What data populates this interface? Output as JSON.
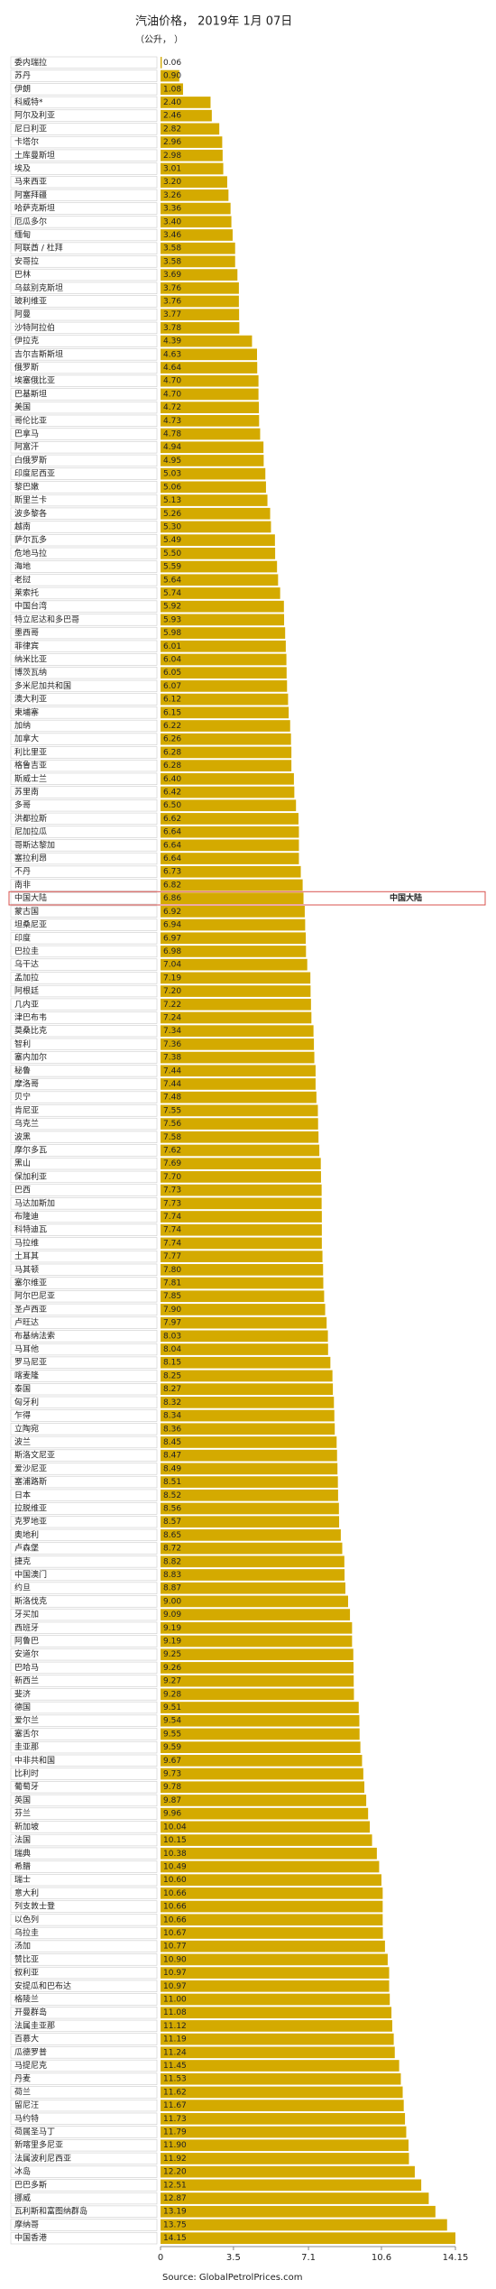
{
  "chart_data": {
    "type": "bar",
    "orientation": "horizontal",
    "title": "汽油价格， 2019年 1月 07日",
    "subtitle": "（公升， ）",
    "source": "Source: GlobalPetrolPrices.com",
    "highlight": "中国大陆",
    "color": "#d4aa00",
    "highlight_color": "#d9534f",
    "xlim": [
      0,
      14.15
    ],
    "xticks": [
      0,
      3.5,
      7.1,
      10.6,
      14.15
    ],
    "grid": false,
    "categories": [
      "委内瑞拉",
      "苏丹",
      "伊朗",
      "科威特*",
      "阿尔及利亚",
      "尼日利亚",
      "卡塔尔",
      "土库曼斯坦",
      "埃及",
      "马来西亚",
      "阿塞拜疆",
      "哈萨克斯坦",
      "厄瓜多尔",
      "缅甸",
      "阿联酋 / 杜拜",
      "安哥拉",
      "巴林",
      "乌兹别克斯坦",
      "玻利维亚",
      "阿曼",
      "沙特阿拉伯",
      "伊拉克",
      "吉尔吉斯斯坦",
      "俄罗斯",
      "埃塞俄比亚",
      "巴基斯坦",
      "美国",
      "哥伦比亚",
      "巴拿马",
      "阿富汗",
      "白俄罗斯",
      "印度尼西亚",
      "黎巴嫩",
      "斯里兰卡",
      "波多黎各",
      "越南",
      "萨尔瓦多",
      "危地马拉",
      "海地",
      "老挝",
      "莱索托",
      "中国台湾",
      "特立尼达和多巴哥",
      "墨西哥",
      "菲律宾",
      "纳米比亚",
      "博茨瓦纳",
      "多米尼加共和国",
      "澳大利亚",
      "柬埔寨",
      "加纳",
      "加拿大",
      "利比里亚",
      "格鲁吉亚",
      "斯威士兰",
      "苏里南",
      "多哥",
      "洪都拉斯",
      "尼加拉瓜",
      "哥斯达黎加",
      "塞拉利昂",
      "不丹",
      "南非",
      "中国大陆",
      "蒙古国",
      "坦桑尼亚",
      "印度",
      "巴拉圭",
      "乌干达",
      "孟加拉",
      "阿根廷",
      "几内亚",
      "津巴布韦",
      "莫桑比克",
      "智利",
      "塞内加尔",
      "秘鲁",
      "摩洛哥",
      "贝宁",
      "肯尼亚",
      "乌克兰",
      "波黑",
      "摩尔多瓦",
      "黑山",
      "保加利亚",
      "巴西",
      "马达加斯加",
      "布隆迪",
      "科特迪瓦",
      "马拉维",
      "土耳其",
      "马其顿",
      "塞尔维亚",
      "阿尔巴尼亚",
      "圣卢西亚",
      "卢旺达",
      "布基纳法索",
      "马耳他",
      "罗马尼亚",
      "喀麦隆",
      "泰国",
      "匈牙利",
      "乍得",
      "立陶宛",
      "波兰",
      "斯洛文尼亚",
      "爱沙尼亚",
      "塞浦路斯",
      "日本",
      "拉脱维亚",
      "克罗地亚",
      "奥地利",
      "卢森堡",
      "捷克",
      "中国澳门",
      "约旦",
      "斯洛伐克",
      "牙买加",
      "西班牙",
      "阿鲁巴",
      "安道尔",
      "巴哈马",
      "新西兰",
      "斐济",
      "德国",
      "爱尔兰",
      "塞舌尔",
      "圭亚那",
      "中非共和国",
      "比利时",
      "葡萄牙",
      "英国",
      "芬兰",
      "新加坡",
      "法国",
      "瑞典",
      "希腊",
      "瑞士",
      "意大利",
      "列支敦士登",
      "以色列",
      "乌拉圭",
      "汤加",
      "赞比亚",
      "叙利亚",
      "安提瓜和巴布达",
      "格陵兰",
      "开曼群岛",
      "法属圭亚那",
      "百慕大",
      "瓜德罗普",
      "马提尼克",
      "丹麦",
      "荷兰",
      "留尼汪",
      "马约特",
      "荷属圣马丁",
      "新喀里多尼亚",
      "法属波利尼西亚",
      "冰岛",
      "巴巴多斯",
      "挪威",
      "瓦利斯和富图纳群岛",
      "摩纳哥",
      "中国香港"
    ],
    "values": [
      0.06,
      0.9,
      1.08,
      2.4,
      2.46,
      2.82,
      2.96,
      2.98,
      3.01,
      3.2,
      3.26,
      3.36,
      3.4,
      3.46,
      3.58,
      3.58,
      3.69,
      3.76,
      3.76,
      3.77,
      3.78,
      4.39,
      4.63,
      4.64,
      4.7,
      4.7,
      4.72,
      4.73,
      4.78,
      4.94,
      4.95,
      5.03,
      5.06,
      5.13,
      5.26,
      5.3,
      5.49,
      5.5,
      5.59,
      5.64,
      5.74,
      5.92,
      5.93,
      5.98,
      6.01,
      6.04,
      6.05,
      6.07,
      6.12,
      6.15,
      6.22,
      6.26,
      6.28,
      6.28,
      6.4,
      6.42,
      6.5,
      6.62,
      6.64,
      6.64,
      6.64,
      6.73,
      6.82,
      6.86,
      6.92,
      6.94,
      6.97,
      6.98,
      7.04,
      7.19,
      7.2,
      7.22,
      7.24,
      7.34,
      7.36,
      7.38,
      7.44,
      7.44,
      7.48,
      7.55,
      7.56,
      7.58,
      7.62,
      7.69,
      7.7,
      7.73,
      7.73,
      7.74,
      7.74,
      7.74,
      7.77,
      7.8,
      7.81,
      7.85,
      7.9,
      7.97,
      8.03,
      8.04,
      8.15,
      8.25,
      8.27,
      8.32,
      8.34,
      8.36,
      8.45,
      8.47,
      8.49,
      8.51,
      8.52,
      8.56,
      8.57,
      8.65,
      8.72,
      8.82,
      8.83,
      8.87,
      9.0,
      9.09,
      9.19,
      9.19,
      9.25,
      9.26,
      9.27,
      9.28,
      9.51,
      9.54,
      9.55,
      9.59,
      9.67,
      9.73,
      9.78,
      9.87,
      9.96,
      10.04,
      10.15,
      10.38,
      10.49,
      10.6,
      10.66,
      10.66,
      10.66,
      10.67,
      10.77,
      10.9,
      10.97,
      10.97,
      11.0,
      11.08,
      11.12,
      11.19,
      11.24,
      11.45,
      11.53,
      11.62,
      11.67,
      11.73,
      11.79,
      11.9,
      11.92,
      12.2,
      12.51,
      12.87,
      13.19,
      13.75,
      14.15
    ],
    "value_labels": [
      "0.06",
      "0.90",
      "1.08",
      "2.40",
      "2.46",
      "2.82",
      "2.96",
      "2.98",
      "3.01",
      "3.20",
      "3.26",
      "3.36",
      "3.40",
      "3.46",
      "3.58",
      "3.58",
      "3.69",
      "3.76",
      "3.76",
      "3.77",
      "3.78",
      "4.39",
      "4.63",
      "4.64",
      "4.70",
      "4.70",
      "4.72",
      "4.73",
      "4.78",
      "4.94",
      "4.95",
      "5.03",
      "5.06",
      "5.13",
      "5.26",
      "5.30",
      "5.49",
      "5.50",
      "5.59",
      "5.64",
      "5.74",
      "5.92",
      "5.93",
      "5.98",
      "6.01",
      "6.04",
      "6.05",
      "6.07",
      "6.12",
      "6.15",
      "6.22",
      "6.26",
      "6.28",
      "6.28",
      "6.40",
      "6.42",
      "6.50",
      "6.62",
      "6.64",
      "6.64",
      "6.64",
      "6.73",
      "6.82",
      "6.86",
      "6.92",
      "6.94",
      "6.97",
      "6.98",
      "7.04",
      "7.19",
      "7.20",
      "7.22",
      "7.24",
      "7.34",
      "7.36",
      "7.38",
      "7.44",
      "7.44",
      "7.48",
      "7.55",
      "7.56",
      "7.58",
      "7.62",
      "7.69",
      "7.70",
      "7.73",
      "7.73",
      "7.74",
      "7.74",
      "7.74",
      "7.77",
      "7.80",
      "7.81",
      "7.85",
      "7.90",
      "7.97",
      "8.03",
      "8.04",
      "8.15",
      "8.25",
      "8.27",
      "8.32",
      "8.34",
      "8.36",
      "8.45",
      "8.47",
      "8.49",
      "8.51",
      "8.52",
      "8.56",
      "8.57",
      "8.65",
      "8.72",
      "8.82",
      "8.83",
      "8.87",
      "9.00",
      "9.09",
      "9.19",
      "9.19",
      "9.25",
      "9.26",
      "9.27",
      "9.28",
      "9.51",
      "9.54",
      "9.55",
      "9.59",
      "9.67",
      "9.73",
      "9.78",
      "9.87",
      "9.96",
      "10.04",
      "10.15",
      "10.38",
      "10.49",
      "10.60",
      "10.66",
      "10.66",
      "10.66",
      "10.67",
      "10.77",
      "10.90",
      "10.97",
      "10.97",
      "11.00",
      "11.08",
      "11.12",
      "11.19",
      "11.24",
      "11.45",
      "11.53",
      "11.62",
      "11.67",
      "11.73",
      "11.79",
      "11.90",
      "11.92",
      "12.20",
      "12.51",
      "12.87",
      "13.19",
      "13.75",
      "14.15"
    ]
  }
}
